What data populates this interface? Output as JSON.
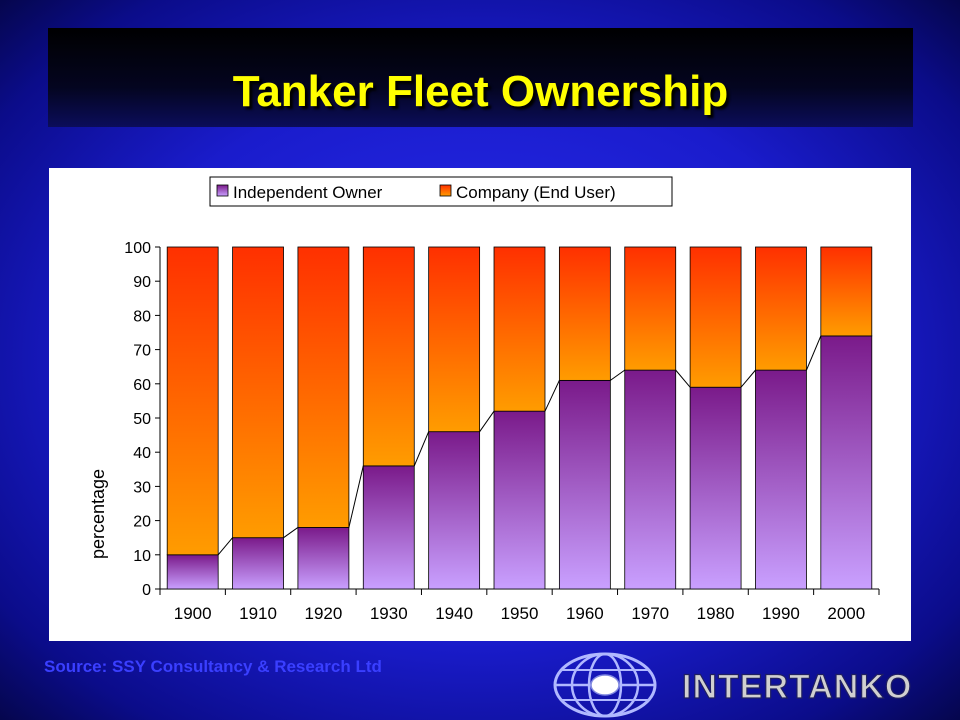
{
  "slide": {
    "title": "Tanker Fleet Ownership",
    "source": "Source: SSY Consultancy & Research Ltd",
    "logo_text": "INTERTANKO",
    "colors": {
      "title": "#ffff00",
      "background": "#1a1ccc",
      "source": "#3a3fff"
    }
  },
  "chart_data": {
    "type": "bar",
    "stacked": true,
    "categories": [
      "1900",
      "1910",
      "1920",
      "1930",
      "1940",
      "1950",
      "1960",
      "1970",
      "1980",
      "1990",
      "2000"
    ],
    "series": [
      {
        "name": "Independent Owner",
        "values": [
          10,
          15,
          18,
          36,
          46,
          52,
          61,
          64,
          59,
          64,
          74
        ],
        "color": "#8a2a9a"
      },
      {
        "name": "Company (End User)",
        "values": [
          90,
          85,
          82,
          64,
          54,
          48,
          39,
          36,
          41,
          36,
          26
        ],
        "color": "#ff6a00"
      }
    ],
    "ylabel": "percentage",
    "xlabel": "",
    "ylim": [
      0,
      100
    ],
    "yticks": [
      0,
      10,
      20,
      30,
      40,
      50,
      60,
      70,
      80,
      90,
      100
    ],
    "legend_position": "top",
    "series_lines": true
  }
}
